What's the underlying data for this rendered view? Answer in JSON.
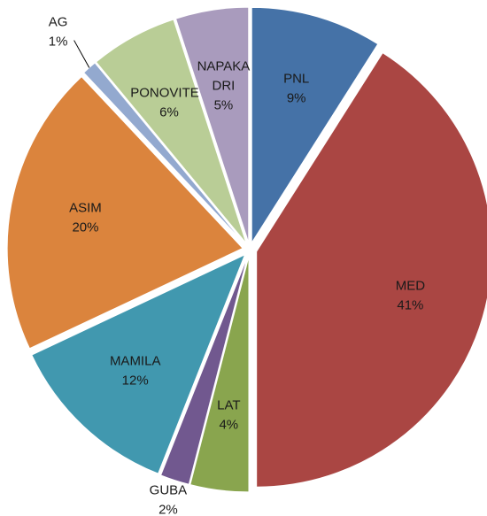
{
  "chart_data": {
    "type": "pie",
    "categories": [
      "PNL",
      "MED",
      "LAT",
      "GUBA",
      "MAMILA",
      "ASIM",
      "AG",
      "PONOVITEV",
      "NAPAKA DRI"
    ],
    "values": [
      9,
      41,
      4,
      2,
      12,
      20,
      1,
      6,
      5
    ],
    "value_labels": [
      "9%",
      "41%",
      "4%",
      "2%",
      "12%",
      "20%",
      "1%",
      "6%",
      "5%"
    ],
    "colors": [
      "#4572a7",
      "#aa4643",
      "#89a54e",
      "#71588f",
      "#4198af",
      "#db843d",
      "#93a9cf",
      "#b9cd96",
      "#a99bbd"
    ]
  }
}
